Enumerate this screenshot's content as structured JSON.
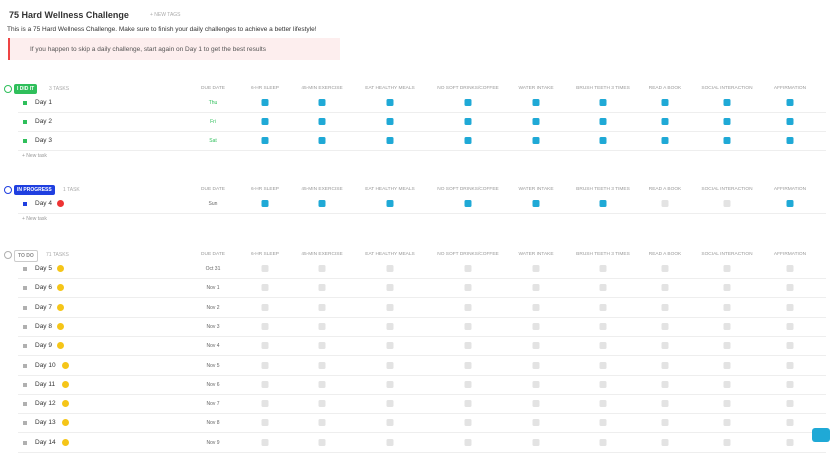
{
  "header": {
    "title": "75 Hard Wellness Challenge",
    "new_tags": "+ NEW TAGS",
    "description": "This is a 75 Hard Wellness Challenge. Make sure to finish your daily challenges to achieve a better lifestyle!",
    "notice": "If you happen to skip a daily challenge, start again on Day 1 to get the best results"
  },
  "columns": [
    "DUE DATE",
    "6-HR SLEEP",
    "45-MIN EXERCISE",
    "EAT HEALTHY MEALS",
    "NO SOFT DRINKS/COFFEE",
    "WATER INTAKE",
    "BRUSH TEETH 3 TIMES",
    "READ A BOOK",
    "SOCIAL INTERACTION",
    "AFFIRMATION"
  ],
  "groups": [
    {
      "status": "I DID IT",
      "count": "3 TASKS",
      "color": "#2fbf5b",
      "new_task": "+ New task",
      "tasks": [
        {
          "name": "Day 1",
          "due": "Thu",
          "checks": [
            true,
            true,
            true,
            true,
            true,
            true,
            true,
            true,
            true
          ]
        },
        {
          "name": "Day 2",
          "due": "Fri",
          "checks": [
            true,
            true,
            true,
            true,
            true,
            true,
            true,
            true,
            true
          ]
        },
        {
          "name": "Day 3",
          "due": "Sat",
          "checks": [
            true,
            true,
            true,
            true,
            true,
            true,
            true,
            true,
            true
          ]
        }
      ]
    },
    {
      "status": "IN PROGRESS",
      "count": "1 TASK",
      "color": "#1f3fe0",
      "new_task": "+ New task",
      "tasks": [
        {
          "name": "Day 4",
          "due": "Sun",
          "checks": [
            true,
            true,
            true,
            true,
            true,
            true,
            false,
            false,
            true
          ]
        }
      ]
    },
    {
      "status": "TO DO",
      "count": "71 TASKS",
      "color": "#b0b0b0",
      "tasks": [
        {
          "name": "Day 5",
          "due": "Oct 31",
          "checks": [
            false,
            false,
            false,
            false,
            false,
            false,
            false,
            false,
            false
          ]
        },
        {
          "name": "Day 6",
          "due": "Nov 1",
          "checks": [
            false,
            false,
            false,
            false,
            false,
            false,
            false,
            false,
            false
          ]
        },
        {
          "name": "Day 7",
          "due": "Nov 2",
          "checks": [
            false,
            false,
            false,
            false,
            false,
            false,
            false,
            false,
            false
          ]
        },
        {
          "name": "Day 8",
          "due": "Nov 3",
          "checks": [
            false,
            false,
            false,
            false,
            false,
            false,
            false,
            false,
            false
          ]
        },
        {
          "name": "Day 9",
          "due": "Nov 4",
          "checks": [
            false,
            false,
            false,
            false,
            false,
            false,
            false,
            false,
            false
          ]
        },
        {
          "name": "Day 10",
          "due": "Nov 5",
          "checks": [
            false,
            false,
            false,
            false,
            false,
            false,
            false,
            false,
            false
          ]
        },
        {
          "name": "Day 11",
          "due": "Nov 6",
          "checks": [
            false,
            false,
            false,
            false,
            false,
            false,
            false,
            false,
            false
          ]
        },
        {
          "name": "Day 12",
          "due": "Nov 7",
          "checks": [
            false,
            false,
            false,
            false,
            false,
            false,
            false,
            false,
            false
          ]
        },
        {
          "name": "Day 13",
          "due": "Nov 8",
          "checks": [
            false,
            false,
            false,
            false,
            false,
            false,
            false,
            false,
            false
          ]
        },
        {
          "name": "Day 14",
          "due": "Nov 9",
          "checks": [
            false,
            false,
            false,
            false,
            false,
            false,
            false,
            false,
            false
          ]
        }
      ]
    }
  ]
}
